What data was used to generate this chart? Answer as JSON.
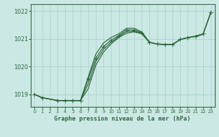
{
  "xlabel": "Graphe pression niveau de la mer (hPa)",
  "bg_color": "#cce8e4",
  "grid_color": "#aad4c8",
  "line_color": "#2d6a3f",
  "ytick_vals": [
    1019,
    1020,
    1021,
    1022
  ],
  "xticks": [
    0,
    1,
    2,
    3,
    4,
    5,
    6,
    7,
    8,
    9,
    10,
    11,
    12,
    13,
    14,
    15,
    16,
    17,
    18,
    19,
    20,
    21,
    22,
    23
  ],
  "ylim": [
    1018.55,
    1022.25
  ],
  "xlim": [
    -0.5,
    23.5
  ],
  "series_with_markers": [
    {
      "x": [
        0,
        1,
        3,
        4,
        5,
        6,
        7,
        8,
        9,
        10,
        11,
        12,
        13,
        14,
        15,
        16,
        17,
        18,
        19,
        20,
        21,
        22,
        23
      ],
      "y": [
        1019.0,
        1018.88,
        1018.78,
        1018.78,
        1018.78,
        1018.78,
        1019.55,
        1020.3,
        1020.72,
        1020.95,
        1021.12,
        1021.32,
        1021.32,
        1021.22,
        1020.88,
        1020.82,
        1020.8,
        1020.8,
        1020.98,
        1021.05,
        1021.1,
        1021.18,
        1021.95
      ]
    }
  ],
  "series_line_only": [
    {
      "x": [
        0,
        1,
        3,
        4,
        5,
        6,
        7,
        8,
        9,
        10,
        11,
        12,
        13,
        14,
        15,
        16,
        17,
        18,
        19,
        20,
        21,
        22,
        23
      ],
      "y": [
        1019.0,
        1018.88,
        1018.78,
        1018.78,
        1018.78,
        1018.78,
        1019.2,
        1020.05,
        1020.52,
        1020.82,
        1021.05,
        1021.2,
        1021.25,
        1021.18,
        1020.87,
        1020.81,
        1020.79,
        1020.79,
        1020.97,
        1021.04,
        1021.08,
        1021.16,
        1021.95
      ]
    },
    {
      "x": [
        0,
        1,
        3,
        4,
        5,
        6,
        7,
        8,
        9,
        10,
        11,
        12,
        13,
        14,
        15,
        16,
        17,
        18,
        19,
        20,
        21,
        22,
        23
      ],
      "y": [
        1019.0,
        1018.88,
        1018.78,
        1018.78,
        1018.78,
        1018.78,
        1019.38,
        1020.18,
        1020.62,
        1020.88,
        1021.08,
        1021.26,
        1021.28,
        1021.2,
        1020.87,
        1020.81,
        1020.79,
        1020.79,
        1020.97,
        1021.04,
        1021.09,
        1021.17,
        1021.95
      ]
    }
  ],
  "series_upper": [
    {
      "x": [
        0,
        1,
        3,
        4,
        5,
        6,
        7,
        8,
        9,
        10,
        11,
        12,
        13,
        14,
        15
      ],
      "y": [
        1019.0,
        1018.88,
        1018.78,
        1018.78,
        1018.78,
        1018.78,
        1019.62,
        1020.45,
        1020.85,
        1021.05,
        1021.18,
        1021.38,
        1021.38,
        1021.25,
        1020.88
      ]
    }
  ]
}
